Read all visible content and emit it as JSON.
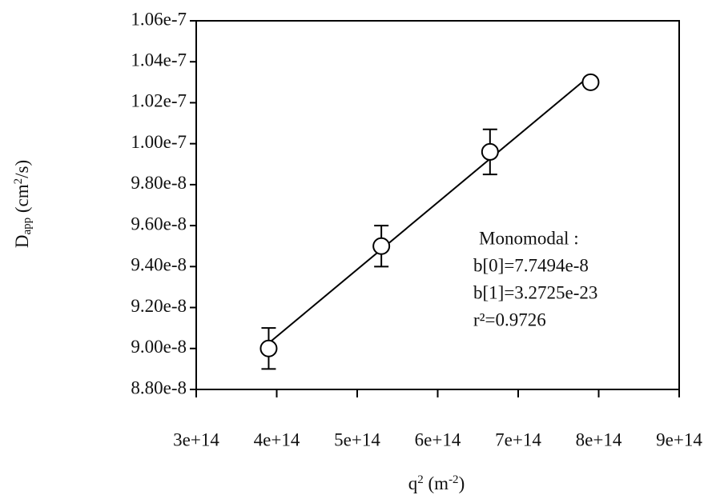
{
  "chart_data": {
    "type": "scatter",
    "x_label_parts": [
      "q",
      "2",
      " (m",
      "-2",
      ")"
    ],
    "y_label_parts": [
      "D",
      "app",
      " (cm",
      "2",
      "/s)"
    ],
    "series": [
      {
        "x": [
          390000000000000.0,
          530000000000000.0,
          665000000000000.0,
          790000000000000.0
        ],
        "values": [
          9e-08,
          9.5e-08,
          9.96e-08,
          1.03e-07
        ],
        "errors": [
          1e-09,
          1e-09,
          1.1e-09,
          null
        ],
        "color": "#000000"
      }
    ],
    "fit": {
      "x": [
        390000000000000.0,
        790000000000000.0
      ],
      "values": [
        9.026e-08,
        1.0335e-07
      ]
    },
    "annotation": [
      "Monomodal :",
      "b[0]=7.7494e-8",
      "b[1]=3.2725e-23",
      "r²=0.9726"
    ],
    "xlim": [
      300000000000000.0,
      900000000000000.0
    ],
    "ylim": [
      8.8e-08,
      1.06e-07
    ],
    "xticks": [
      {
        "value": 300000000000000.0,
        "label": "3e+14"
      },
      {
        "value": 400000000000000.0,
        "label": "4e+14"
      },
      {
        "value": 500000000000000.0,
        "label": "5e+14"
      },
      {
        "value": 600000000000000.0,
        "label": "6e+14"
      },
      {
        "value": 700000000000000.0,
        "label": "7e+14"
      },
      {
        "value": 800000000000000.0,
        "label": "8e+14"
      },
      {
        "value": 900000000000000.0,
        "label": "9e+14"
      }
    ],
    "yticks": [
      {
        "value": 8.8e-08,
        "label": "8.80e-8"
      },
      {
        "value": 9e-08,
        "label": "9.00e-8"
      },
      {
        "value": 9.2e-08,
        "label": "9.20e-8"
      },
      {
        "value": 9.4e-08,
        "label": "9.40e-8"
      },
      {
        "value": 9.6e-08,
        "label": "9.60e-8"
      },
      {
        "value": 9.8e-08,
        "label": "9.80e-8"
      },
      {
        "value": 1e-07,
        "label": "1.00e-7"
      },
      {
        "value": 1.02e-07,
        "label": "1.02e-7"
      },
      {
        "value": 1.04e-07,
        "label": "1.04e-7"
      },
      {
        "value": 1.06e-07,
        "label": "1.06e-7"
      }
    ]
  }
}
